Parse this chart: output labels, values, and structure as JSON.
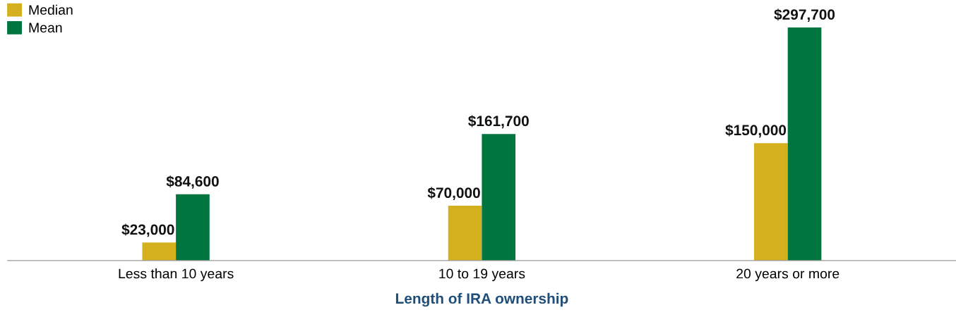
{
  "chart_data": {
    "type": "bar",
    "xlabel": "Length of IRA ownership",
    "categories": [
      "Less than 10 years",
      "10 to 19 years",
      "20 years or more"
    ],
    "series": [
      {
        "name": "Median",
        "color": "#d4b01e",
        "values": [
          23000,
          70000,
          150000
        ],
        "value_labels": [
          "$23,000",
          "$70,000",
          "$150,000"
        ]
      },
      {
        "name": "Mean",
        "color": "#00753f",
        "values": [
          84600,
          161700,
          297700
        ],
        "value_labels": [
          "$84,600",
          "$161,700",
          "$297,700"
        ]
      }
    ],
    "legend": "top left",
    "grid": false
  }
}
